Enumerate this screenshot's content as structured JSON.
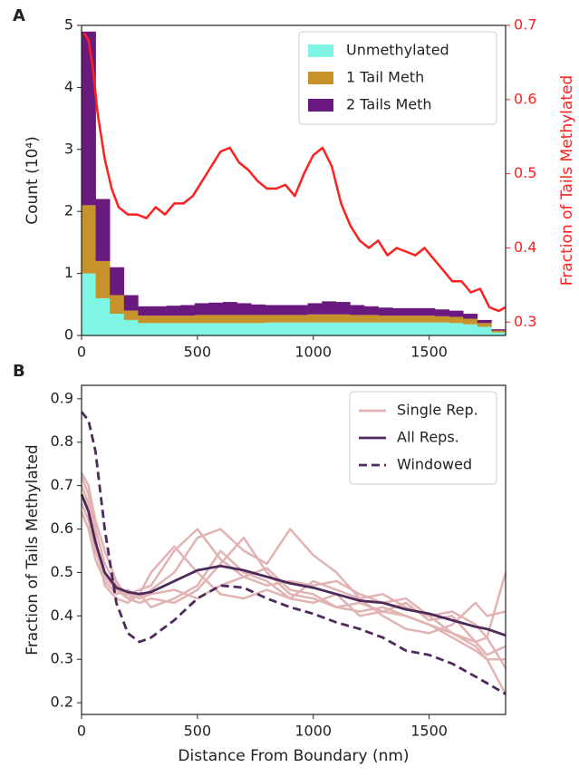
{
  "chart_data": [
    {
      "type": "histogram",
      "panel_label": "A",
      "ylabel": "Count (10⁴)",
      "y2label": "Fraction of Tails Methylated",
      "bins": [
        0,
        61,
        122,
        183,
        244,
        305,
        366,
        427,
        488,
        549,
        610,
        671,
        732,
        793,
        854,
        915,
        976,
        1037,
        1098,
        1159,
        1220,
        1281,
        1342,
        1403,
        1464,
        1525,
        1586,
        1647,
        1708,
        1769,
        1830
      ],
      "series": [
        {
          "name": "Unmethylated",
          "color": "#7ff5e4",
          "values": [
            1.0,
            0.6,
            0.35,
            0.25,
            0.2,
            0.2,
            0.2,
            0.2,
            0.2,
            0.2,
            0.2,
            0.2,
            0.2,
            0.21,
            0.21,
            0.21,
            0.21,
            0.21,
            0.21,
            0.21,
            0.21,
            0.21,
            0.21,
            0.21,
            0.21,
            0.21,
            0.2,
            0.18,
            0.14,
            0.05
          ]
        },
        {
          "name": "1 Tail Meth",
          "color": "#c8922a",
          "values": [
            1.1,
            0.6,
            0.3,
            0.15,
            0.12,
            0.12,
            0.12,
            0.12,
            0.13,
            0.13,
            0.13,
            0.13,
            0.13,
            0.12,
            0.12,
            0.12,
            0.13,
            0.13,
            0.13,
            0.12,
            0.12,
            0.11,
            0.11,
            0.11,
            0.11,
            0.1,
            0.1,
            0.09,
            0.06,
            0.03
          ]
        },
        {
          "name": "2 Tails Meth",
          "color": "#6a1a7f",
          "values": [
            2.8,
            1.0,
            0.45,
            0.25,
            0.15,
            0.15,
            0.16,
            0.17,
            0.19,
            0.2,
            0.21,
            0.19,
            0.17,
            0.16,
            0.16,
            0.16,
            0.18,
            0.21,
            0.2,
            0.16,
            0.14,
            0.13,
            0.12,
            0.12,
            0.12,
            0.11,
            0.1,
            0.08,
            0.05,
            0.02
          ]
        }
      ],
      "overlay": {
        "axis": "y2",
        "color": "#ff1f1f",
        "x": [
          10,
          30,
          50,
          70,
          100,
          130,
          160,
          200,
          240,
          280,
          320,
          360,
          400,
          440,
          480,
          520,
          560,
          600,
          640,
          680,
          720,
          760,
          800,
          840,
          880,
          920,
          960,
          1000,
          1040,
          1080,
          1120,
          1160,
          1200,
          1240,
          1280,
          1320,
          1360,
          1400,
          1440,
          1480,
          1520,
          1560,
          1600,
          1640,
          1680,
          1720,
          1760,
          1800,
          1830
        ],
        "values": [
          0.69,
          0.68,
          0.64,
          0.58,
          0.52,
          0.48,
          0.455,
          0.445,
          0.445,
          0.44,
          0.455,
          0.445,
          0.46,
          0.46,
          0.47,
          0.49,
          0.51,
          0.53,
          0.535,
          0.515,
          0.505,
          0.49,
          0.48,
          0.48,
          0.485,
          0.47,
          0.5,
          0.525,
          0.535,
          0.51,
          0.46,
          0.43,
          0.41,
          0.4,
          0.41,
          0.39,
          0.4,
          0.395,
          0.39,
          0.4,
          0.385,
          0.37,
          0.355,
          0.355,
          0.34,
          0.345,
          0.32,
          0.315,
          0.32
        ]
      },
      "xlim": [
        0,
        1830
      ],
      "xticks": [
        0,
        500,
        1000,
        1500
      ],
      "ylim": [
        0,
        5
      ],
      "yticks": [
        0,
        1,
        2,
        3,
        4,
        5
      ],
      "y2lim": [
        0.282,
        0.7
      ],
      "y2ticks": [
        0.3,
        0.4,
        0.5,
        0.6,
        0.7
      ],
      "legend": "upper right"
    },
    {
      "type": "line",
      "panel_label": "B",
      "ylabel": "Fraction of Tails Methylated",
      "xlabel": "Distance From Boundary (nm)",
      "x": [
        0,
        30,
        60,
        100,
        150,
        200,
        250,
        300,
        400,
        500,
        600,
        700,
        800,
        900,
        1000,
        1100,
        1200,
        1300,
        1400,
        1500,
        1600,
        1700,
        1750,
        1830
      ],
      "series": [
        {
          "name": "Single Rep.",
          "color": "#e2b3b3",
          "values": [
            [
              0.72,
              0.68,
              0.6,
              0.52,
              0.47,
              0.45,
              0.44,
              0.46,
              0.5,
              0.58,
              0.6,
              0.55,
              0.52,
              0.6,
              0.54,
              0.5,
              0.44,
              0.45,
              0.42,
              0.4,
              0.41,
              0.38,
              0.35,
              0.5
            ],
            [
              0.7,
              0.66,
              0.56,
              0.49,
              0.46,
              0.45,
              0.46,
              0.47,
              0.55,
              0.6,
              0.53,
              0.49,
              0.47,
              0.48,
              0.47,
              0.48,
              0.45,
              0.43,
              0.44,
              0.4,
              0.36,
              0.33,
              0.3,
              0.22
            ],
            [
              0.73,
              0.7,
              0.62,
              0.55,
              0.48,
              0.44,
              0.43,
              0.44,
              0.43,
              0.46,
              0.52,
              0.58,
              0.5,
              0.45,
              0.44,
              0.42,
              0.41,
              0.42,
              0.4,
              0.38,
              0.36,
              0.34,
              0.31,
              0.33
            ],
            [
              0.66,
              0.62,
              0.55,
              0.49,
              0.46,
              0.44,
              0.45,
              0.5,
              0.56,
              0.5,
              0.45,
              0.44,
              0.46,
              0.44,
              0.43,
              0.45,
              0.4,
              0.41,
              0.43,
              0.39,
              0.4,
              0.34,
              0.35,
              0.28
            ],
            [
              0.68,
              0.65,
              0.58,
              0.47,
              0.44,
              0.43,
              0.45,
              0.42,
              0.44,
              0.47,
              0.55,
              0.5,
              0.48,
              0.44,
              0.48,
              0.46,
              0.44,
              0.4,
              0.37,
              0.36,
              0.38,
              0.43,
              0.4,
              0.41
            ],
            [
              0.64,
              0.6,
              0.53,
              0.48,
              0.45,
              0.46,
              0.44,
              0.45,
              0.46,
              0.44,
              0.47,
              0.49,
              0.51,
              0.46,
              0.45,
              0.42,
              0.43,
              0.41,
              0.4,
              0.38,
              0.35,
              0.32,
              0.3,
              0.3
            ]
          ]
        },
        {
          "name": "All Reps.",
          "color": "#4e2a5c",
          "values": [
            0.68,
            0.64,
            0.57,
            0.5,
            0.465,
            0.455,
            0.45,
            0.455,
            0.48,
            0.505,
            0.515,
            0.505,
            0.49,
            0.475,
            0.465,
            0.45,
            0.435,
            0.43,
            0.415,
            0.405,
            0.39,
            0.375,
            0.37,
            0.355
          ]
        },
        {
          "name": "Windowed",
          "color": "#4e2a5c",
          "dashed": true,
          "values": [
            0.87,
            0.85,
            0.78,
            0.6,
            0.43,
            0.36,
            0.34,
            0.35,
            0.39,
            0.44,
            0.47,
            0.465,
            0.44,
            0.42,
            0.405,
            0.385,
            0.37,
            0.35,
            0.32,
            0.31,
            0.29,
            0.26,
            0.245,
            0.22
          ]
        }
      ],
      "xlim": [
        0,
        1830
      ],
      "xticks": [
        0,
        500,
        1000,
        1500
      ],
      "ylim": [
        0.173,
        0.931
      ],
      "yticks": [
        0.2,
        0.3,
        0.4,
        0.5,
        0.6,
        0.7,
        0.8,
        0.9
      ],
      "legend": "upper right"
    }
  ]
}
